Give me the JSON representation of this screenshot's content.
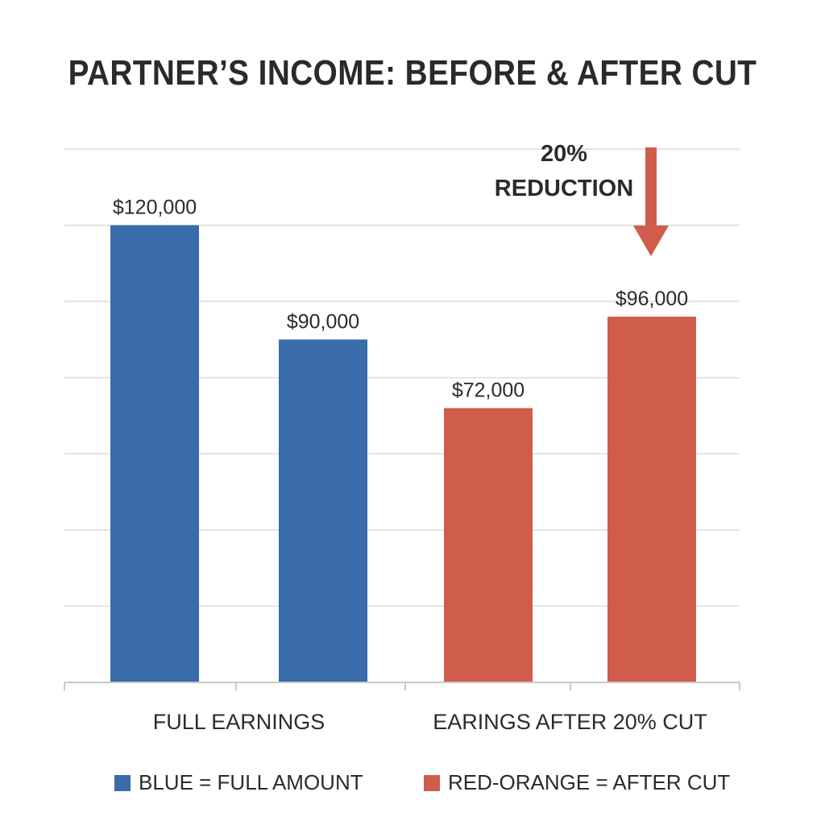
{
  "chart_data": {
    "type": "bar",
    "title": "PARTNER’S INCOME: BEFORE & AFTER CUT",
    "ylim": [
      0,
      140000
    ],
    "grid": true,
    "groups": [
      {
        "label": "FULL EARNINGS",
        "bar_indices": [
          0,
          1
        ]
      },
      {
        "label": "EARINGS AFTER 20% CUT",
        "bar_indices": [
          2,
          3
        ]
      }
    ],
    "bars": [
      {
        "value": 120000,
        "label": "$120,000",
        "color": "#3a6baa"
      },
      {
        "value": 90000,
        "label": "$90,000",
        "color": "#3a6baa"
      },
      {
        "value": 72000,
        "label": "$72,000",
        "color": "#d05c4b"
      },
      {
        "value": 96000,
        "label": "$96,000",
        "color": "#d05c4b"
      }
    ],
    "annotation": {
      "line1": "20%",
      "line2": "REDUCTION",
      "arrow_color": "#d05c4b",
      "points_to_bar": 3
    },
    "legend": [
      {
        "text": "BLUE = FULL AMOUNT",
        "color": "#3a6baa"
      },
      {
        "text": "RED-ORANGE = AFTER CUT",
        "color": "#d05c4b"
      }
    ]
  }
}
